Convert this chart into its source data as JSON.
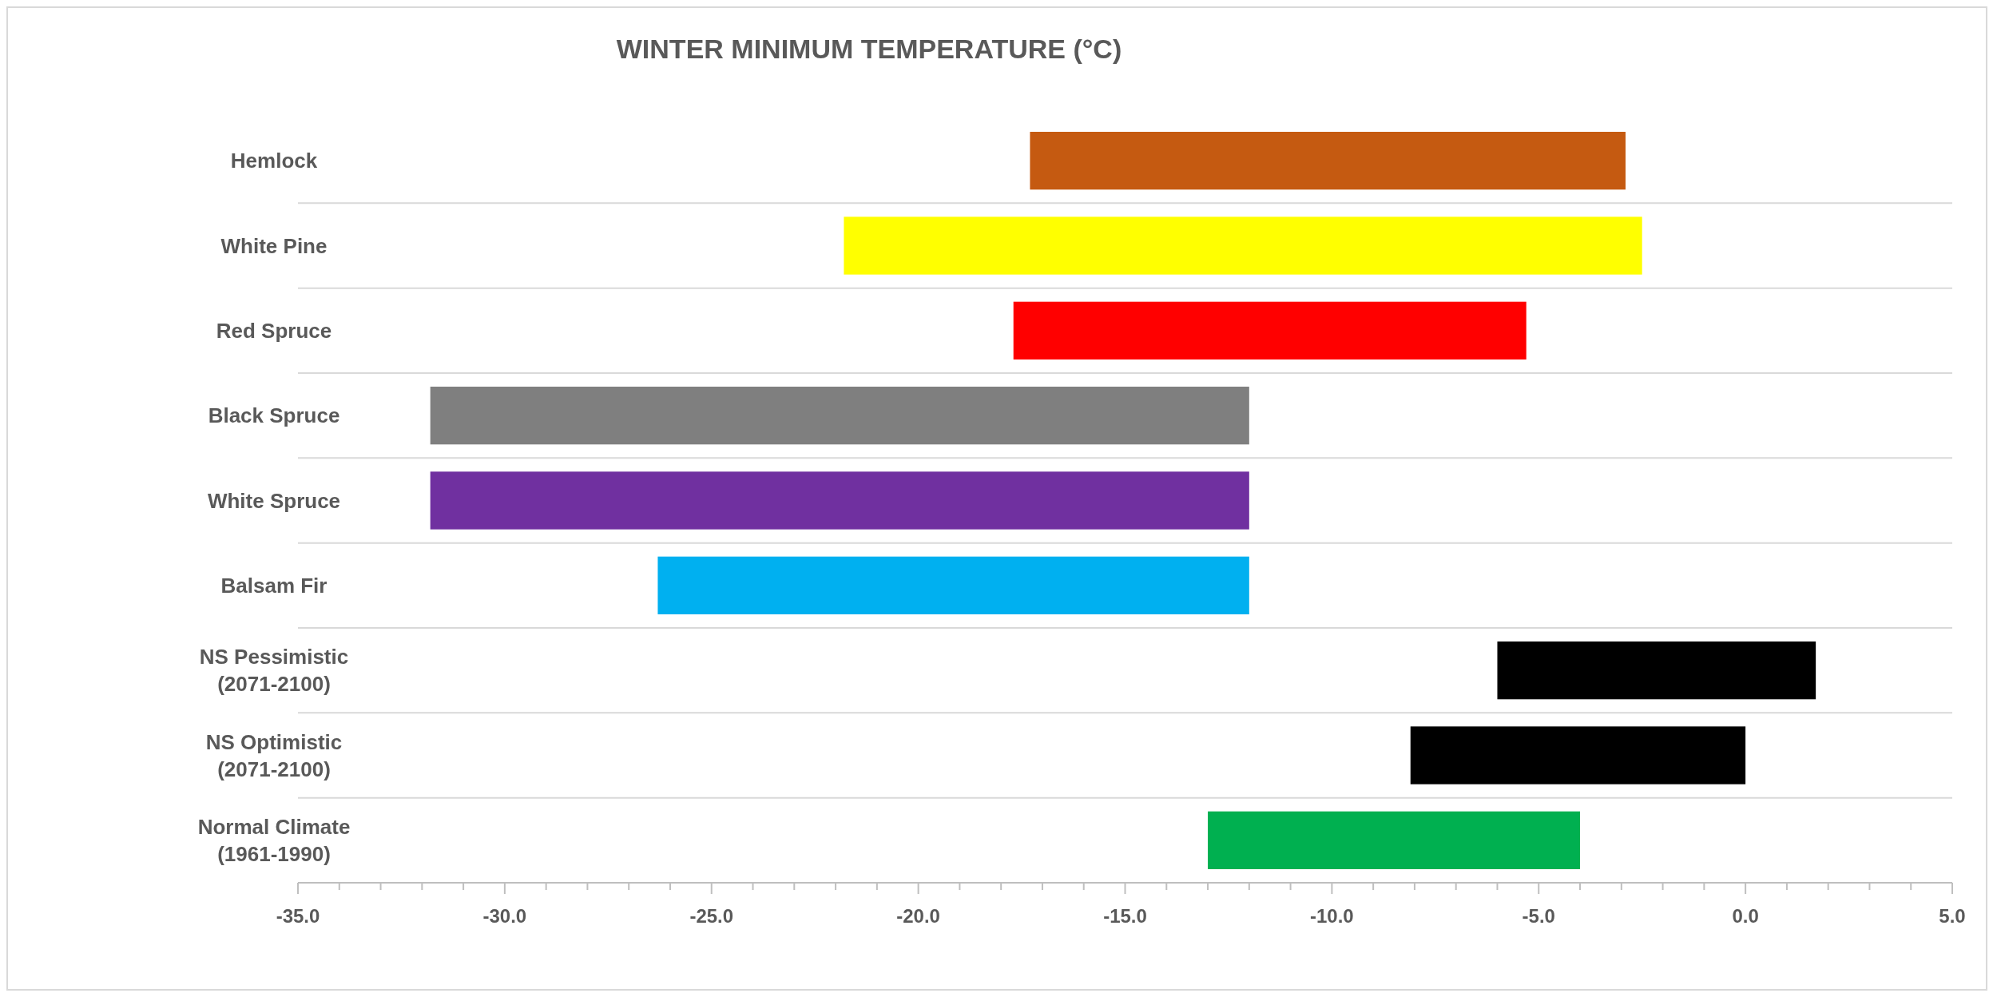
{
  "chart_data": {
    "type": "bar",
    "orientation": "horizontal",
    "title": "WINTER MINIMUM TEMPERATURE (°C)",
    "categories": [
      "Hemlock",
      "White Pine",
      "Red Spruce",
      "Black Spruce",
      "White Spruce",
      "Balsam Fir",
      "NS Pessimistic (2071-2100)",
      "NS Optimistic (2071-2100)",
      "Normal Climate (1961-1990)"
    ],
    "base": [
      -17.3,
      -21.8,
      -17.7,
      -31.8,
      -31.8,
      -26.3,
      -6.0,
      -8.1,
      -13.0
    ],
    "values": [
      14.4,
      19.3,
      12.4,
      19.8,
      19.8,
      14.3,
      7.7,
      8.1,
      9.0
    ],
    "colors": [
      "#c55a11",
      "#ffff00",
      "#ff0000",
      "#7f7f7f",
      "#7030a0",
      "#00b0f0",
      "#000000",
      "#000000",
      "#00b050"
    ],
    "xlim": [
      -35,
      5
    ],
    "xticks": [
      {
        "value": -35,
        "label": "-35.0"
      },
      {
        "value": -30,
        "label": "-30.0"
      },
      {
        "value": -25,
        "label": "-25.0"
      },
      {
        "value": -20,
        "label": "-20.0"
      },
      {
        "value": -15,
        "label": "-15.0"
      },
      {
        "value": -10,
        "label": "-10.0"
      },
      {
        "value": -5,
        "label": "-5.0"
      },
      {
        "value": 0,
        "label": "0.0"
      },
      {
        "value": 5,
        "label": "5.0"
      }
    ],
    "grid": "y"
  }
}
